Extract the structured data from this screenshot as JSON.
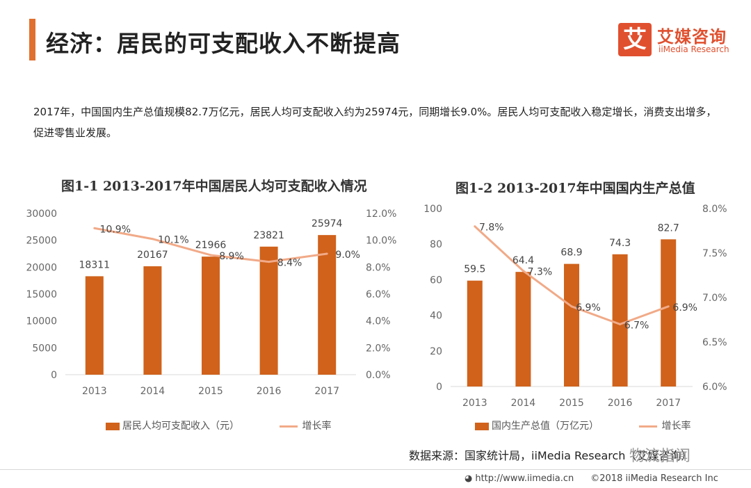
{
  "header": {
    "title": "经济：居民的可支配收入不断提高",
    "logo_cn": "艾媒咨询",
    "logo_en": "iiMedia Research",
    "logo_mark": "艾"
  },
  "description": "2017年，中国国内生产总值规模82.7万亿元，居民人均可支配收入约为25974元，同期增长9.0%。居民人均可支配收入稳定增长，消费支出增多，促进零售业发展。",
  "chart_data": [
    {
      "type": "bar",
      "title": "图1-1 2013-2017年中国居民人均可支配收入情况",
      "categories": [
        "2013",
        "2014",
        "2015",
        "2016",
        "2017"
      ],
      "series": [
        {
          "name": "居民人均可支配收入（元）",
          "type": "bar",
          "axis": "left",
          "values": [
            18311,
            20167,
            21966,
            23821,
            25974
          ]
        },
        {
          "name": "增长率",
          "type": "line",
          "axis": "right",
          "values": [
            10.9,
            10.1,
            8.9,
            8.4,
            9.0
          ],
          "labels": [
            "10.9%",
            "10.1%",
            "8.9%",
            "8.4%",
            "9.0%"
          ]
        }
      ],
      "y_left": {
        "min": 0,
        "max": 30000,
        "ticks": [
          "0",
          "5000",
          "10000",
          "15000",
          "20000",
          "25000",
          "30000"
        ]
      },
      "y_right": {
        "min": 0,
        "max": 12,
        "ticks": [
          "0.0%",
          "2.0%",
          "4.0%",
          "6.0%",
          "8.0%",
          "10.0%",
          "12.0%"
        ]
      },
      "grid": false,
      "legend_position": "bottom",
      "colors": {
        "bar": "#d0621b",
        "line": "#f1aa88"
      }
    },
    {
      "type": "bar",
      "title": "图1-2 2013-2017年中国国内生产总值",
      "categories": [
        "2013",
        "2014",
        "2015",
        "2016",
        "2017"
      ],
      "series": [
        {
          "name": "国内生产总值（万亿元）",
          "type": "bar",
          "axis": "left",
          "values": [
            59.5,
            64.4,
            68.9,
            74.3,
            82.7
          ]
        },
        {
          "name": "增长率",
          "type": "line",
          "axis": "right",
          "values": [
            7.8,
            7.3,
            6.9,
            6.7,
            6.9
          ],
          "labels": [
            "7.8%",
            "7.3%",
            "6.9%",
            "6.7%",
            "6.9%"
          ]
        }
      ],
      "y_left": {
        "min": 0,
        "max": 100,
        "ticks": [
          "0",
          "20",
          "40",
          "60",
          "80",
          "100"
        ]
      },
      "y_right": {
        "min": 6.0,
        "max": 8.0,
        "ticks": [
          "6.0%",
          "6.5%",
          "7.0%",
          "7.5%",
          "8.0%"
        ]
      },
      "grid": false,
      "legend_position": "bottom",
      "colors": {
        "bar": "#d0621b",
        "line": "#f1aa88"
      }
    }
  ],
  "source": "数据来源：国家统计局，iiMedia Research（艾媒咨询）",
  "watermark": "物流指闻",
  "footer": {
    "url": "http://www.iimedia.cn",
    "copyright": "©2018  iiMedia Research Inc"
  }
}
